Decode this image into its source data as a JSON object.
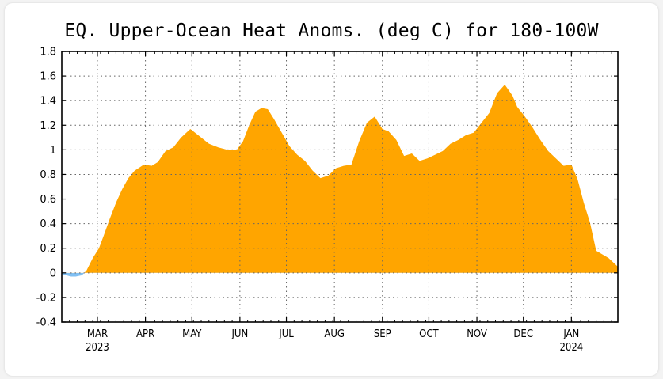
{
  "chart_data": {
    "type": "area",
    "title": "EQ. Upper-Ocean Heat Anoms. (deg C) for 180-100W",
    "xlabel": "",
    "ylabel": "",
    "ylim": [
      -0.4,
      1.8
    ],
    "yticks": [
      -0.4,
      -0.2,
      0,
      0.2,
      0.4,
      0.6,
      0.8,
      1,
      1.2,
      1.4,
      1.6,
      1.8
    ],
    "ytick_labels": [
      "-0.4",
      "-0.2",
      "0",
      "0.2",
      "0.4",
      "0.6",
      "0.8",
      "1",
      "1.2",
      "1.4",
      "1.6",
      "1.8"
    ],
    "x_range": [
      "2023-02-06",
      "2024-01-31"
    ],
    "month_ticks": [
      {
        "date": "2023-03-01",
        "label": "MAR",
        "year": "2023"
      },
      {
        "date": "2023-04-01",
        "label": "APR",
        "year": ""
      },
      {
        "date": "2023-05-01",
        "label": "MAY",
        "year": ""
      },
      {
        "date": "2023-06-01",
        "label": "JUN",
        "year": ""
      },
      {
        "date": "2023-07-01",
        "label": "JUL",
        "year": ""
      },
      {
        "date": "2023-08-01",
        "label": "AUG",
        "year": ""
      },
      {
        "date": "2023-09-01",
        "label": "SEP",
        "year": ""
      },
      {
        "date": "2023-10-01",
        "label": "OCT",
        "year": ""
      },
      {
        "date": "2023-11-01",
        "label": "NOV",
        "year": ""
      },
      {
        "date": "2023-12-01",
        "label": "DEC",
        "year": ""
      },
      {
        "date": "2024-01-01",
        "label": "JAN",
        "year": "2024"
      }
    ],
    "grid": true,
    "colors": {
      "positive": "#ffa500",
      "negative": "#80bff2"
    },
    "series": [
      {
        "x": [
          "2023-02-06",
          "2023-02-12",
          "2023-02-15",
          "2023-02-19",
          "2023-02-22",
          "2023-02-26",
          "2023-03-02",
          "2023-03-05",
          "2023-03-09",
          "2023-03-13",
          "2023-03-17",
          "2023-03-21",
          "2023-03-25",
          "2023-03-31",
          "2023-04-05",
          "2023-04-09",
          "2023-04-14",
          "2023-04-19",
          "2023-04-24",
          "2023-04-30",
          "2023-05-06",
          "2023-05-12",
          "2023-05-18",
          "2023-05-24",
          "2023-05-30",
          "2023-06-03",
          "2023-06-07",
          "2023-06-11",
          "2023-06-15",
          "2023-06-19",
          "2023-06-23",
          "2023-06-28",
          "2023-07-03",
          "2023-07-08",
          "2023-07-13",
          "2023-07-18",
          "2023-07-23",
          "2023-07-28",
          "2023-08-02",
          "2023-08-07",
          "2023-08-12",
          "2023-08-17",
          "2023-08-22",
          "2023-08-27",
          "2023-09-01",
          "2023-09-05",
          "2023-09-10",
          "2023-09-15",
          "2023-09-20",
          "2023-09-25",
          "2023-09-30",
          "2023-10-05",
          "2023-10-10",
          "2023-10-15",
          "2023-10-20",
          "2023-10-25",
          "2023-10-30",
          "2023-11-04",
          "2023-11-09",
          "2023-11-14",
          "2023-11-19",
          "2023-11-24",
          "2023-11-27",
          "2023-12-02",
          "2023-12-07",
          "2023-12-12",
          "2023-12-17",
          "2023-12-22",
          "2023-12-27",
          "2024-01-01",
          "2024-01-05",
          "2024-01-09",
          "2024-01-13",
          "2024-01-17",
          "2024-01-21",
          "2024-01-25",
          "2024-01-31"
        ],
        "values": [
          -0.01,
          -0.03,
          -0.03,
          -0.02,
          0.02,
          0.12,
          0.2,
          0.3,
          0.44,
          0.57,
          0.68,
          0.77,
          0.83,
          0.88,
          0.87,
          0.9,
          0.99,
          1.02,
          1.1,
          1.17,
          1.11,
          1.05,
          1.02,
          1.0,
          1.0,
          1.07,
          1.2,
          1.31,
          1.34,
          1.33,
          1.25,
          1.14,
          1.03,
          0.96,
          0.91,
          0.83,
          0.77,
          0.79,
          0.85,
          0.87,
          0.88,
          1.07,
          1.22,
          1.27,
          1.17,
          1.15,
          1.08,
          0.95,
          0.97,
          0.91,
          0.93,
          0.96,
          0.99,
          1.05,
          1.08,
          1.12,
          1.14,
          1.22,
          1.3,
          1.46,
          1.53,
          1.44,
          1.35,
          1.27,
          1.18,
          1.08,
          0.99,
          0.93,
          0.87,
          0.88,
          0.76,
          0.57,
          0.41,
          0.18,
          0.15,
          0.12,
          0.05
        ]
      }
    ]
  }
}
